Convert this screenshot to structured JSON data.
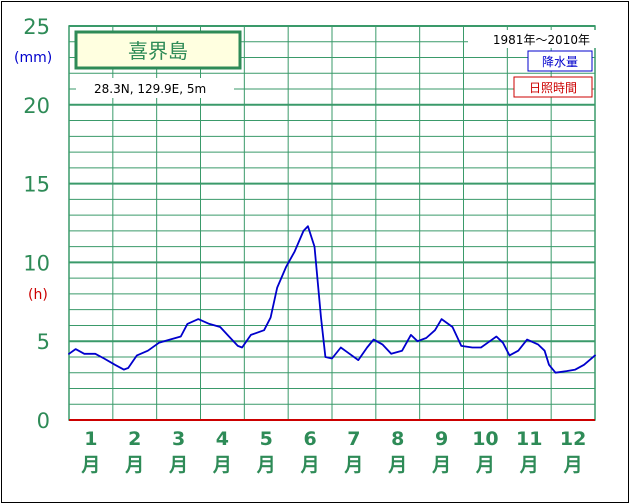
{
  "chart_data": {
    "type": "line",
    "station": "喜界島",
    "location": "28.3N,  129.9E,  5m",
    "period": "1981年～2010年",
    "unit_precip": "(mm)",
    "unit_sun": "(h)",
    "legend": [
      {
        "label": "降水量",
        "color": "#0000cc"
      },
      {
        "label": "日照時間",
        "color": "#cc0000"
      }
    ],
    "ylim": [
      0,
      25
    ],
    "yticks": [
      "0",
      "5",
      "10",
      "15",
      "20",
      "25"
    ],
    "xlim": [
      0.5,
      12.5
    ],
    "months": [
      {
        "num": "1",
        "unit": "月"
      },
      {
        "num": "2",
        "unit": "月"
      },
      {
        "num": "3",
        "unit": "月"
      },
      {
        "num": "4",
        "unit": "月"
      },
      {
        "num": "5",
        "unit": "月"
      },
      {
        "num": "6",
        "unit": "月"
      },
      {
        "num": "7",
        "unit": "月"
      },
      {
        "num": "8",
        "unit": "月"
      },
      {
        "num": "9",
        "unit": "月"
      },
      {
        "num": "10",
        "unit": "月"
      },
      {
        "num": "11",
        "unit": "月"
      },
      {
        "num": "12",
        "unit": "月"
      }
    ],
    "grid": true,
    "series": [
      {
        "name": "降水量",
        "color": "#0000cc",
        "x": [
          0.5,
          0.65,
          0.85,
          1.1,
          1.3,
          1.55,
          1.75,
          1.85,
          2.05,
          2.3,
          2.55,
          2.8,
          3.05,
          3.2,
          3.45,
          3.7,
          3.95,
          4.15,
          4.35,
          4.45,
          4.65,
          4.95,
          5.1,
          5.25,
          5.45,
          5.65,
          5.85,
          5.95,
          6.1,
          6.25,
          6.35,
          6.5,
          6.7,
          6.85,
          7.1,
          7.3,
          7.45,
          7.65,
          7.85,
          8.1,
          8.3,
          8.45,
          8.65,
          8.85,
          9.0,
          9.25,
          9.45,
          9.7,
          9.9,
          10.05,
          10.25,
          10.4,
          10.55,
          10.75,
          10.95,
          11.2,
          11.35,
          11.45,
          11.6,
          11.85,
          12.05,
          12.25,
          12.5
        ],
        "values": [
          4.2,
          4.5,
          4.2,
          4.2,
          3.9,
          3.5,
          3.2,
          3.3,
          4.1,
          4.4,
          4.9,
          5.1,
          5.3,
          6.1,
          6.4,
          6.1,
          5.9,
          5.3,
          4.7,
          4.6,
          5.4,
          5.7,
          6.5,
          8.4,
          9.7,
          10.7,
          12.0,
          12.3,
          11.0,
          6.5,
          4.0,
          3.9,
          4.6,
          4.3,
          3.8,
          4.6,
          5.1,
          4.8,
          4.2,
          4.4,
          5.4,
          5.0,
          5.2,
          5.7,
          6.4,
          5.9,
          4.7,
          4.6,
          4.6,
          4.9,
          5.3,
          4.9,
          4.1,
          4.4,
          5.1,
          4.8,
          4.4,
          3.5,
          3.0,
          3.1,
          3.2,
          3.5,
          4.1
        ]
      },
      {
        "name": "日照時間",
        "color": "#cc0000",
        "x": [],
        "values": []
      }
    ]
  }
}
